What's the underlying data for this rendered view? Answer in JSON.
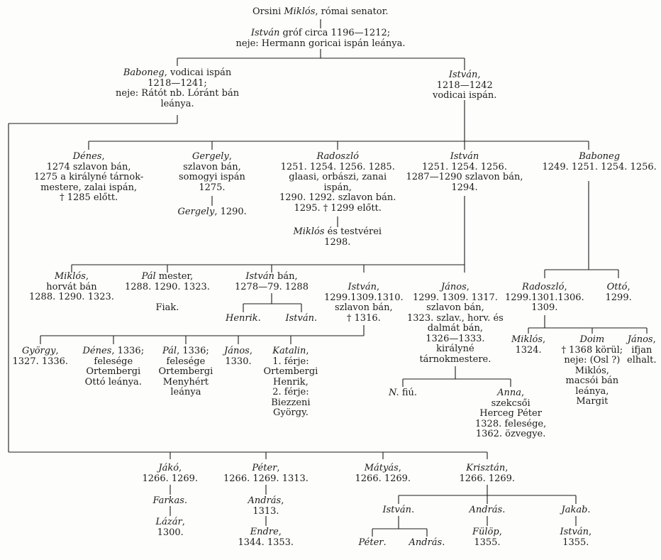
{
  "persons": [
    {
      "id": "n01",
      "lines": [
        "Orsini *Miklós*, római senator."
      ]
    },
    {
      "id": "n02",
      "lines": [
        "*István* gróf circa 1196—1212;",
        "neje: Hermann goricai ispán leánya."
      ]
    },
    {
      "id": "n03",
      "lines": [
        "*Baboneg*, vodicai ispán",
        "1218—1241;",
        "neje: Rátót nb. Lóránt bán",
        "leánya."
      ]
    },
    {
      "id": "n04",
      "lines": [
        "*István*,",
        "1218—1242",
        "vodicai ispán."
      ]
    },
    {
      "id": "n05",
      "lines": [
        "*Dénes*,",
        "1274 szlavon bán,",
        "1275 a királyné tárnok-",
        "mestere, zalai ispán,",
        "† 1285 előtt."
      ]
    },
    {
      "id": "n06",
      "lines": [
        "*Gergely*,",
        "szlavon bán,",
        "somogyi ispán",
        "1275."
      ]
    },
    {
      "id": "n07",
      "lines": [
        "*Gergely*, 1290."
      ]
    },
    {
      "id": "n08",
      "lines": [
        "*Radoszló*",
        "1251. 1254. 1256. 1285.",
        "glaasi, orbászi, zanai",
        "ispán,",
        "1290. 1292. szlavon bán.",
        "1295. † 1299 előtt."
      ]
    },
    {
      "id": "n09",
      "lines": [
        "*Miklós* és testvérei",
        "1298."
      ]
    },
    {
      "id": "n10",
      "lines": [
        "*István*",
        "1251. 1254. 1256.",
        "1287—1290 szlavon bán,",
        "1294."
      ]
    },
    {
      "id": "n11",
      "lines": [
        "*Baboneg*",
        "1249. 1251. 1254. 1256."
      ]
    },
    {
      "id": "n12",
      "lines": [
        "*Miklós*,",
        "horvát bán",
        "1288. 1290. 1323."
      ]
    },
    {
      "id": "n13",
      "lines": [
        "*Pál* mester,",
        "1288. 1290. 1323.",
        "",
        "Fiak."
      ]
    },
    {
      "id": "n14",
      "lines": [
        "*István* bán,",
        "1278—79. 1288"
      ]
    },
    {
      "id": "n15",
      "lines": [
        "*Henrik*."
      ]
    },
    {
      "id": "n16",
      "lines": [
        "*István*."
      ]
    },
    {
      "id": "n17",
      "lines": [
        "*István*,",
        "1299.1309.1310.",
        "szlavon bán,",
        "† 1316."
      ]
    },
    {
      "id": "n18",
      "lines": [
        "*János*,",
        "1299. 1309. 1317.",
        "szlavon bán,",
        "1323. szlav., horv. és",
        "dalmát bán,",
        "1326—1333.",
        "királyné",
        "tárnokmestere."
      ]
    },
    {
      "id": "n19",
      "lines": [
        "*Radoszló*,",
        "1299.1301.1306.",
        "1309."
      ]
    },
    {
      "id": "n20",
      "lines": [
        "*Ottó*,",
        "1299."
      ]
    },
    {
      "id": "n21",
      "lines": [
        "*György*,",
        "1327. 1336."
      ]
    },
    {
      "id": "n22",
      "lines": [
        "*Dénes*, 1336;",
        "felesége",
        "Ortembergi",
        "Ottó leánya."
      ]
    },
    {
      "id": "n23",
      "lines": [
        "*Pál*, 1336;",
        "felesége",
        "Ortembergi",
        "Menyhért",
        "leánya"
      ]
    },
    {
      "id": "n24",
      "lines": [
        "*János*,",
        "1330."
      ]
    },
    {
      "id": "n25",
      "lines": [
        "*Katalin*,",
        "1. férje:",
        "Ortembergi",
        "Henrik,",
        "2. férje:",
        "Biezzeni",
        "György."
      ]
    },
    {
      "id": "n26",
      "lines": [
        "*N.* fiú."
      ]
    },
    {
      "id": "n27",
      "lines": [
        "*Anna*,",
        "szekcsői",
        "Herceg Péter",
        "1328. felesége,",
        "1362. özvegye."
      ]
    },
    {
      "id": "n28",
      "lines": [
        "*Miklós*,",
        "1324."
      ]
    },
    {
      "id": "n29",
      "lines": [
        "*Doim*",
        "† 1368 körül;",
        "neje: (Osl ?)",
        "Miklós,",
        "macsói bán",
        "leánya,",
        "Margit"
      ]
    },
    {
      "id": "n30",
      "lines": [
        "*János*,",
        "ifjan",
        "elhalt."
      ]
    },
    {
      "id": "n31",
      "lines": [
        "*Jákó*,",
        "1266. 1269."
      ]
    },
    {
      "id": "n32",
      "lines": [
        "*Farkas*."
      ]
    },
    {
      "id": "n33",
      "lines": [
        "*Lázár*,",
        "1300."
      ]
    },
    {
      "id": "n34",
      "lines": [
        "*Péter*,",
        "1266. 1269. 1313."
      ]
    },
    {
      "id": "n35",
      "lines": [
        "*András*,",
        "1313."
      ]
    },
    {
      "id": "n36",
      "lines": [
        "*Endre*,",
        "1344. 1353."
      ]
    },
    {
      "id": "n37",
      "lines": [
        "*Mátyás*,",
        "1266. 1269."
      ]
    },
    {
      "id": "n38",
      "lines": [
        "*Krisztán*,",
        "1266. 1269."
      ]
    },
    {
      "id": "n39",
      "lines": [
        "*István*."
      ]
    },
    {
      "id": "n40",
      "lines": [
        "*Péter*."
      ]
    },
    {
      "id": "n41",
      "lines": [
        "*András*."
      ]
    },
    {
      "id": "n42",
      "lines": [
        "*András*."
      ]
    },
    {
      "id": "n43",
      "lines": [
        "*Fülöp*,",
        "1355."
      ]
    },
    {
      "id": "n44",
      "lines": [
        "*Jakab*."
      ]
    },
    {
      "id": "n45",
      "lines": [
        "*István*,",
        "1355."
      ]
    }
  ],
  "links": [
    [
      "n01",
      "n02"
    ],
    [
      "n02",
      "n03"
    ],
    [
      "n02",
      "n04"
    ],
    [
      "n03",
      "n31"
    ],
    [
      "n03",
      "n34"
    ],
    [
      "n03",
      "n37"
    ],
    [
      "n03",
      "n38"
    ],
    [
      "n04",
      "n05"
    ],
    [
      "n04",
      "n06"
    ],
    [
      "n04",
      "n08"
    ],
    [
      "n04",
      "n10"
    ],
    [
      "n04",
      "n11"
    ],
    [
      "n06",
      "n07"
    ],
    [
      "n08",
      "n09"
    ],
    [
      "n10",
      "n12"
    ],
    [
      "n10",
      "n13"
    ],
    [
      "n10",
      "n14"
    ],
    [
      "n10",
      "n17"
    ],
    [
      "n10",
      "n18"
    ],
    [
      "n11",
      "n19"
    ],
    [
      "n11",
      "n20"
    ],
    [
      "n14",
      "n15"
    ],
    [
      "n14",
      "n16"
    ],
    [
      "n17",
      "n21"
    ],
    [
      "n17",
      "n22"
    ],
    [
      "n17",
      "n23"
    ],
    [
      "n17",
      "n24"
    ],
    [
      "n17",
      "n25"
    ],
    [
      "n18",
      "n26"
    ],
    [
      "n18",
      "n27"
    ],
    [
      "n19",
      "n28"
    ],
    [
      "n19",
      "n29"
    ],
    [
      "n19",
      "n30"
    ],
    [
      "n31",
      "n32"
    ],
    [
      "n32",
      "n33"
    ],
    [
      "n34",
      "n35"
    ],
    [
      "n35",
      "n36"
    ],
    [
      "n38",
      "n39"
    ],
    [
      "n38",
      "n42"
    ],
    [
      "n38",
      "n44"
    ],
    [
      "n39",
      "n40"
    ],
    [
      "n39",
      "n41"
    ],
    [
      "n42",
      "n43"
    ],
    [
      "n44",
      "n45"
    ]
  ]
}
